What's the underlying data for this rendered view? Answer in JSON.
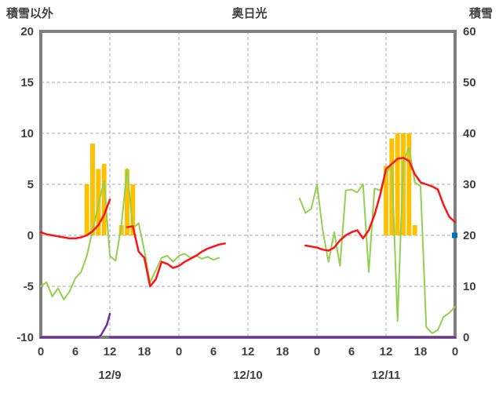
{
  "header": {
    "left_axis_title": "積雪以外",
    "station_title": "奥日光",
    "right_axis_title": "積雪"
  },
  "chart_data": {
    "type": "line",
    "title": "奥日光",
    "x_unit": "hour",
    "x_range": [
      0,
      72
    ],
    "x_ticks": {
      "positions": [
        0,
        6,
        12,
        18,
        24,
        30,
        36,
        42,
        48,
        54,
        60,
        66,
        72
      ],
      "labels": [
        "0",
        "6",
        "12",
        "18",
        "0",
        "6",
        "12",
        "18",
        "0",
        "6",
        "12",
        "18",
        "0"
      ]
    },
    "day_labels": [
      {
        "label": "12/9",
        "center_hour": 12
      },
      {
        "label": "12/10",
        "center_hour": 36
      },
      {
        "label": "12/11",
        "center_hour": 60
      }
    ],
    "left_axis": {
      "title": "積雪以外",
      "min": -10,
      "max": 20,
      "ticks": [
        20,
        15,
        10,
        5,
        0,
        -5,
        -10
      ]
    },
    "right_axis": {
      "title": "積雪",
      "min": 0,
      "max": 60,
      "ticks": [
        60,
        50,
        40,
        30,
        20,
        10,
        0
      ]
    },
    "gridlines": {
      "horizontal_left_values": [
        15,
        10,
        5,
        0,
        -5
      ],
      "vertical_hours": [
        12,
        24,
        36,
        48,
        60
      ]
    },
    "style": {
      "grid_color": "#a6a6a6",
      "frame_color": "#7f7f7f",
      "bar_color": "#FFC000",
      "temperature_color": "#FF1414",
      "green_line_color": "#92D050",
      "snow_color": "#7030A0",
      "marker_color": "#0070C0",
      "text_color": "#404040"
    },
    "series": [
      {
        "name": "precipitation-bars",
        "type": "bar",
        "axis": "left",
        "color": "#FFC000",
        "points": [
          [
            8,
            5
          ],
          [
            9,
            9
          ],
          [
            10,
            6.5
          ],
          [
            11,
            7
          ],
          [
            14,
            1
          ],
          [
            15,
            6.5
          ],
          [
            16,
            5
          ],
          [
            60,
            6.8
          ],
          [
            61,
            9.5
          ],
          [
            62,
            10
          ],
          [
            63,
            10
          ],
          [
            64,
            10
          ],
          [
            65,
            1
          ]
        ]
      },
      {
        "name": "snow-depth-line",
        "type": "line",
        "axis": "right",
        "color": "#7030A0",
        "width": 2.5,
        "segments": [
          [
            [
              0,
              0
            ],
            [
              10,
              0
            ],
            [
              10.5,
              0.5
            ],
            [
              11.5,
              2.5
            ],
            [
              12,
              4.6
            ]
          ],
          [
            [
              12,
              0
            ],
            [
              72,
              0
            ]
          ]
        ]
      },
      {
        "name": "green-line",
        "type": "line",
        "axis": "left",
        "color": "#92D050",
        "width": 2,
        "values": [
          -5,
          -4.6,
          -6,
          -5.2,
          -6.3,
          -5.5,
          -4.2,
          -3.6,
          -2,
          0.5,
          3,
          5.3,
          -2,
          -2.5,
          1,
          6.5,
          0.7,
          1.2,
          -1.5,
          -4.6,
          -3.4,
          -2.2,
          -2,
          -2.6,
          -2,
          -1.8,
          -2.2,
          -2,
          -2.3,
          -2.1,
          -2.4,
          -2.2,
          null,
          null,
          null,
          null,
          null,
          null,
          null,
          null,
          null,
          null,
          null,
          null,
          null,
          3.6,
          2.2,
          2.6,
          5,
          0.5,
          -2.6,
          0.3,
          -3,
          4.4,
          4.5,
          4.2,
          5,
          -3.6,
          4.6,
          4.4,
          6,
          7,
          -8.4,
          7.2,
          8.6,
          5.2,
          4.8,
          -9,
          -9.6,
          -9.3,
          -8,
          -7.6,
          -7
        ]
      },
      {
        "name": "temperature-line",
        "type": "line",
        "axis": "left",
        "color": "#FF1414",
        "width": 2.5,
        "values": [
          0.3,
          0.1,
          0,
          -0.1,
          -0.2,
          -0.3,
          -0.3,
          -0.2,
          0,
          0.4,
          1,
          2,
          3.5,
          null,
          null,
          0.8,
          0.9,
          -1.6,
          -2.2,
          -5,
          -4.3,
          -2.6,
          -2.8,
          -3.2,
          -3,
          -2.6,
          -2.3,
          -2,
          -1.6,
          -1.3,
          -1.1,
          -0.9,
          -0.8,
          null,
          null,
          null,
          null,
          null,
          null,
          null,
          null,
          null,
          null,
          null,
          null,
          null,
          -1,
          -1.1,
          -1.2,
          -1.4,
          -1.5,
          -1.2,
          -0.5,
          0,
          0.3,
          0.5,
          -0.3,
          0.5,
          2,
          4,
          6.5,
          7,
          7.5,
          7.6,
          7.3,
          6,
          5.2,
          5,
          4.8,
          4.5,
          3,
          1.8,
          1.3
        ]
      },
      {
        "name": "snow-depth-marker",
        "type": "point",
        "axis": "right",
        "color": "#0070C0",
        "points": [
          [
            72,
            20
          ]
        ]
      }
    ]
  }
}
